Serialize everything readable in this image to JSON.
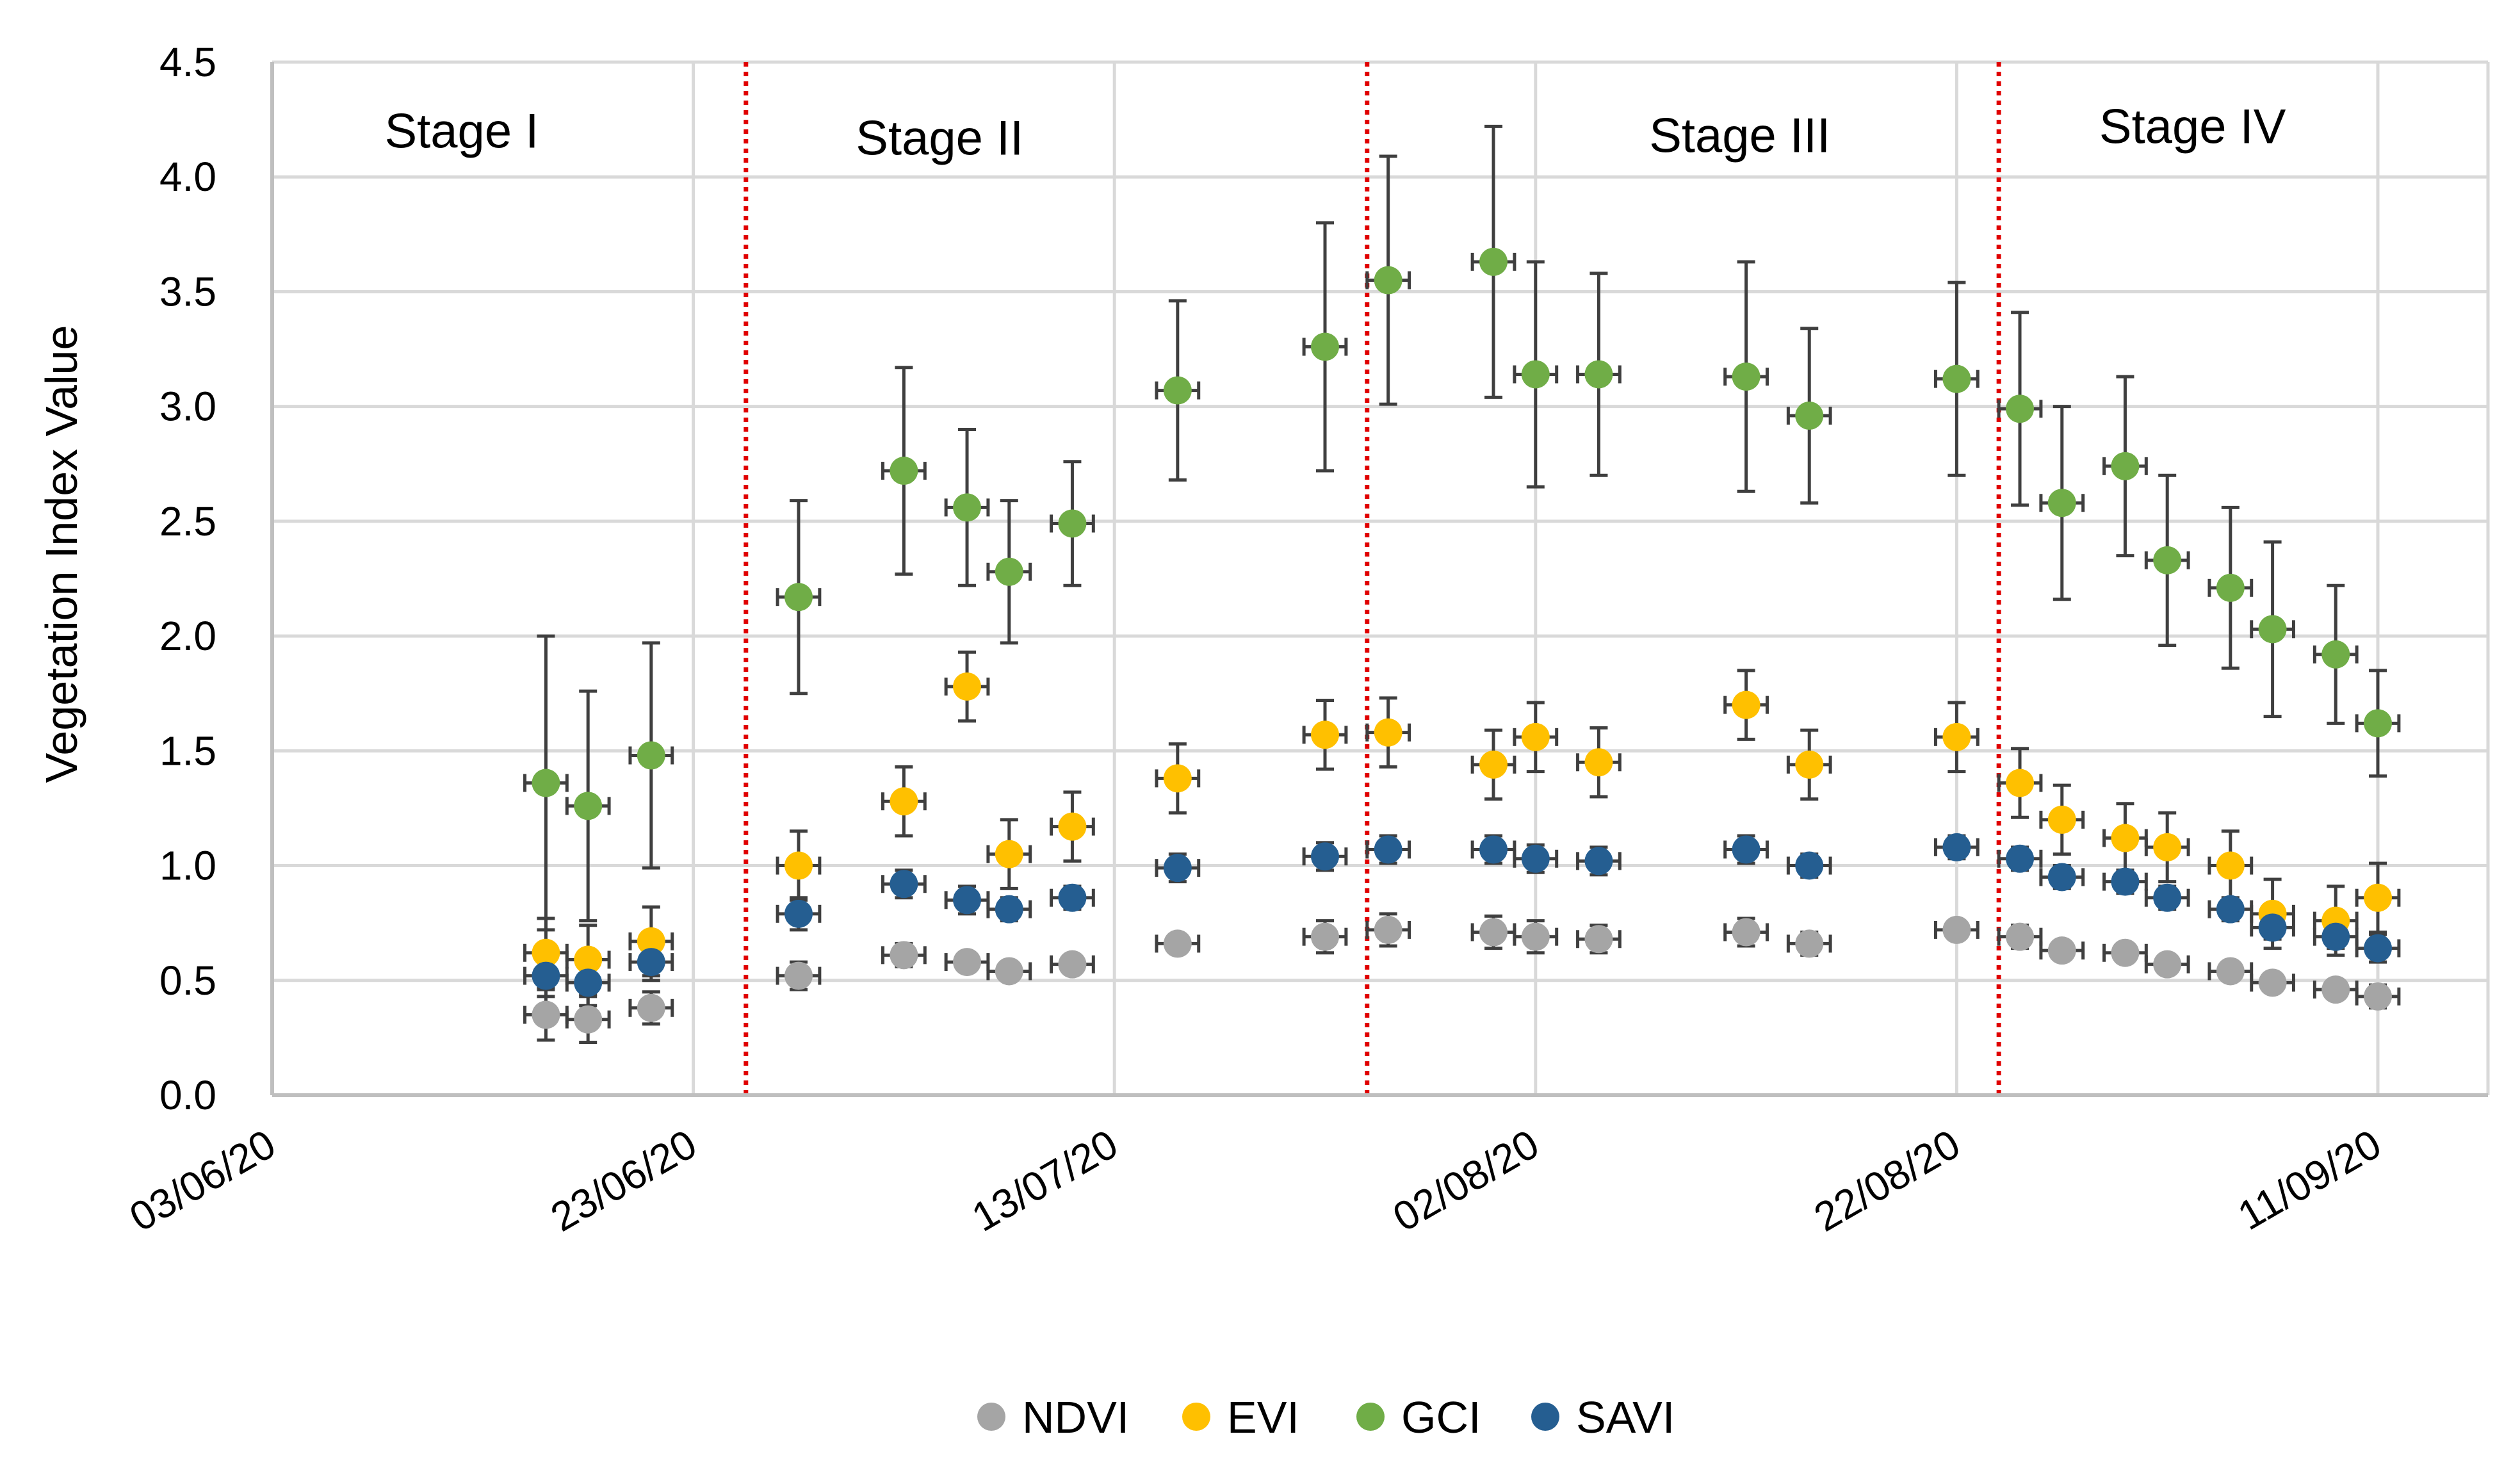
{
  "chart_data": {
    "type": "scatter",
    "title": "",
    "xlabel": "",
    "ylabel": "Vegetation Index Value",
    "ylim": [
      0,
      4.5
    ],
    "yticks": [
      "0.0",
      "0.5",
      "1.0",
      "1.5",
      "2.0",
      "2.5",
      "3.0",
      "3.5",
      "4.0",
      "4.5"
    ],
    "xlim_days": [
      0,
      106
    ],
    "xticks": [
      {
        "label": "03/06/20",
        "day": 0
      },
      {
        "label": "23/06/20",
        "day": 20
      },
      {
        "label": "13/07/20",
        "day": 40
      },
      {
        "label": "02/08/20",
        "day": 60
      },
      {
        "label": "22/08/20",
        "day": 80
      },
      {
        "label": "11/09/20",
        "day": 100
      }
    ],
    "grid": true,
    "legend_position": "bottom",
    "stage_dividers_days": [
      22.5,
      52,
      82
    ],
    "stages": [
      {
        "label": "Stage I",
        "day": 9,
        "y": 4.2
      },
      {
        "label": "Stage II",
        "day": 31.7,
        "y": 4.17
      },
      {
        "label": "Stage III",
        "day": 69.7,
        "y": 4.18
      },
      {
        "label": "Stage IV",
        "day": 91.2,
        "y": 4.22
      }
    ],
    "x_days": [
      13,
      15,
      18,
      25,
      30,
      33,
      35,
      38,
      43,
      50,
      53,
      58,
      60,
      63,
      70,
      73,
      80,
      83,
      85,
      88,
      90,
      93,
      95,
      98,
      100
    ],
    "x_error_days": 1,
    "series": [
      {
        "name": "NDVI",
        "color": "#A5A5A5",
        "values": [
          0.35,
          0.33,
          0.38,
          0.52,
          0.61,
          0.58,
          0.54,
          0.57,
          0.66,
          0.69,
          0.72,
          0.71,
          0.69,
          0.68,
          0.71,
          0.66,
          0.72,
          0.69,
          0.63,
          0.62,
          0.57,
          0.54,
          0.49,
          0.46,
          0.43
        ],
        "errors": [
          0.11,
          0.1,
          0.07,
          0.06,
          0.05,
          0.04,
          0.03,
          0.04,
          0.04,
          0.07,
          0.07,
          0.07,
          0.07,
          0.06,
          0.06,
          0.05,
          0.04,
          0.05,
          0.04,
          0.04,
          0.04,
          0.04,
          0.04,
          0.04,
          0.05
        ]
      },
      {
        "name": "EVI",
        "color": "#FFC000",
        "values": [
          0.62,
          0.59,
          0.67,
          1.0,
          1.28,
          1.78,
          1.05,
          1.17,
          1.38,
          1.57,
          1.58,
          1.44,
          1.56,
          1.45,
          1.7,
          1.44,
          1.56,
          1.36,
          1.2,
          1.12,
          1.08,
          1.0,
          0.79,
          0.76,
          0.86
        ]
      },
      {
        "name": "GCI",
        "color": "#70AD47",
        "values": [
          1.36,
          1.26,
          1.48,
          2.17,
          2.72,
          2.56,
          2.28,
          2.49,
          3.07,
          3.26,
          3.55,
          3.63,
          3.14,
          3.14,
          3.13,
          2.96,
          3.12,
          2.99,
          2.58,
          2.74,
          2.33,
          2.21,
          2.03,
          1.92,
          1.62
        ],
        "errors": [
          0.64,
          0.5,
          0.49,
          0.42,
          0.45,
          0.34,
          0.31,
          0.27,
          0.39,
          0.54,
          0.54,
          0.59,
          0.49,
          0.44,
          0.5,
          0.38,
          0.42,
          0.42,
          0.42,
          0.39,
          0.37,
          0.35,
          0.38,
          0.3,
          0.23
        ]
      },
      {
        "name": "SAVI",
        "color": "#255E91",
        "values": [
          0.52,
          0.49,
          0.58,
          0.79,
          0.92,
          0.85,
          0.81,
          0.86,
          0.99,
          1.04,
          1.07,
          1.07,
          1.03,
          1.02,
          1.07,
          1.0,
          1.08,
          1.03,
          0.95,
          0.93,
          0.86,
          0.81,
          0.73,
          0.69,
          0.64
        ],
        "errors": [
          0.09,
          0.1,
          0.08,
          0.07,
          0.06,
          0.06,
          0.05,
          0.05,
          0.06,
          0.06,
          0.06,
          0.06,
          0.06,
          0.06,
          0.06,
          0.05,
          0.05,
          0.05,
          0.05,
          0.05,
          0.05,
          0.05,
          0.05,
          0.05,
          0.06
        ]
      }
    ]
  }
}
